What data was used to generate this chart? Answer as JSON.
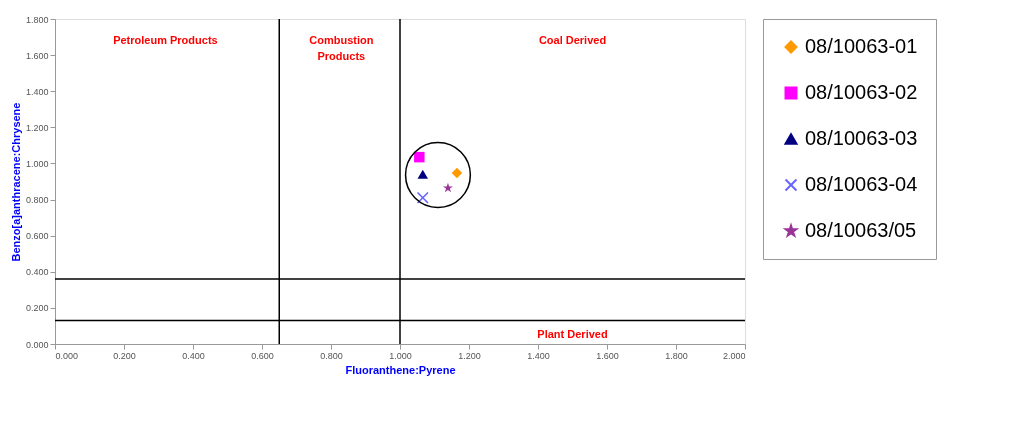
{
  "chart_data": {
    "type": "scatter",
    "xlabel": "Fluoranthene:Pyrene",
    "ylabel": "Benzo[a]anthracene:Chrysene",
    "xlim": [
      0,
      2
    ],
    "ylim": [
      0,
      1.8
    ],
    "xticks": [
      {
        "value": 0,
        "label": "0.000"
      },
      {
        "value": 0.2,
        "label": "0.200"
      },
      {
        "value": 0.4,
        "label": "0.400"
      },
      {
        "value": 0.6,
        "label": "0.600"
      },
      {
        "value": 0.8,
        "label": "0.800"
      },
      {
        "value": 1.0,
        "label": "1.000"
      },
      {
        "value": 1.2,
        "label": "1.200"
      },
      {
        "value": 1.4,
        "label": "1.400"
      },
      {
        "value": 1.6,
        "label": "1.600"
      },
      {
        "value": 1.8,
        "label": "1.800"
      },
      {
        "value": 2.0,
        "label": "2.000"
      }
    ],
    "yticks": [
      {
        "value": 0,
        "label": "0.000"
      },
      {
        "value": 0.2,
        "label": "0.200"
      },
      {
        "value": 0.4,
        "label": "0.400"
      },
      {
        "value": 0.6,
        "label": "0.600"
      },
      {
        "value": 0.8,
        "label": "0.800"
      },
      {
        "value": 1.0,
        "label": "1.000"
      },
      {
        "value": 1.2,
        "label": "1.200"
      },
      {
        "value": 1.4,
        "label": "1.400"
      },
      {
        "value": 1.6,
        "label": "1.600"
      },
      {
        "value": 1.8,
        "label": "1.800"
      }
    ],
    "grid": false,
    "legend": "right",
    "series": [
      {
        "name": "08/10063-01",
        "color": "#ff9900",
        "marker": "diamond",
        "x": [
          1.165
        ],
        "values": [
          0.947
        ]
      },
      {
        "name": "08/10063-02",
        "color": "#ff00ff",
        "marker": "square",
        "x": [
          1.056
        ],
        "values": [
          1.035
        ]
      },
      {
        "name": "08/10063-03",
        "color": "#000080",
        "marker": "triangle",
        "x": [
          1.066
        ],
        "values": [
          0.94
        ]
      },
      {
        "name": "08/10063-04",
        "color": "#6666ff",
        "marker": "cross",
        "x": [
          1.066
        ],
        "values": [
          0.81
        ]
      },
      {
        "name": "08/10063/05",
        "color": "#993399",
        "marker": "star",
        "x": [
          1.139
        ],
        "values": [
          0.864
        ]
      }
    ],
    "ref_lines": [
      {
        "axis": "x",
        "value": 0.65,
        "color": "#000000"
      },
      {
        "axis": "x",
        "value": 1.0,
        "color": "#000000"
      },
      {
        "axis": "y",
        "value": 0.36,
        "color": "#000000"
      },
      {
        "axis": "y",
        "value": 0.13,
        "color": "#000000"
      }
    ],
    "annotations": [
      "Petroleum Products",
      "Combustion\nProducts",
      "Coal Derived",
      "Plant Derived"
    ]
  }
}
